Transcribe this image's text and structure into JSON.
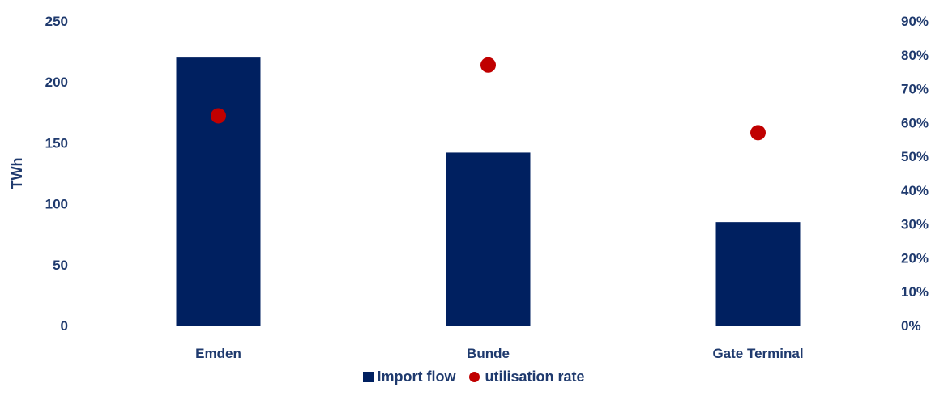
{
  "chart_data": {
    "type": "bar",
    "categories": [
      "Emden",
      "Bunde",
      "Gate Terminal"
    ],
    "series": [
      {
        "name": "Import flow",
        "kind": "bar",
        "axis": "left",
        "values": [
          220,
          142,
          85
        ]
      },
      {
        "name": "utilisation rate",
        "kind": "scatter",
        "axis": "right",
        "values": [
          0.62,
          0.77,
          0.57
        ]
      }
    ],
    "ylabel": "TWh",
    "ylim": [
      0,
      250
    ],
    "yticks": [
      "0",
      "50",
      "100",
      "150",
      "200",
      "250"
    ],
    "y2lim": [
      0,
      0.9
    ],
    "y2ticks": [
      "0%",
      "10%",
      "20%",
      "30%",
      "40%",
      "50%",
      "60%",
      "70%",
      "80%",
      "90%"
    ],
    "grid": false,
    "legend_position": "bottom"
  },
  "colors": {
    "bar": "#002060",
    "marker": "#C00000",
    "text": "#1F3A6E",
    "axis": "#D9D9D9"
  }
}
